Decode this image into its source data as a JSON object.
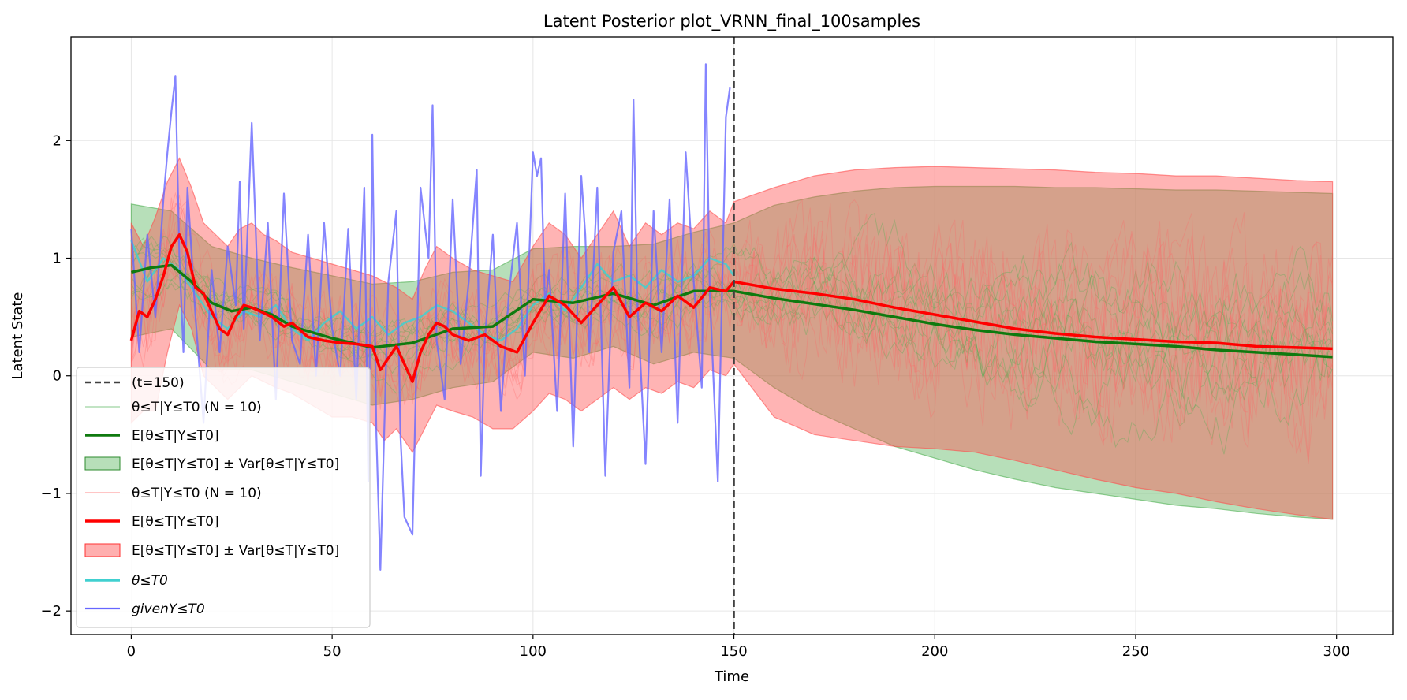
{
  "chart_data": {
    "type": "line",
    "title": "Latent Posterior plot_VRNN_final_100samples",
    "xlabel": "Time",
    "ylabel": "Latent State",
    "xlim": [
      -15,
      314
    ],
    "ylim": [
      -2.2,
      2.88
    ],
    "xticks": [
      0,
      50,
      100,
      150,
      200,
      250,
      300
    ],
    "yticks": [
      -2,
      -1,
      0,
      1,
      2
    ],
    "grid": true,
    "legend_position": "lower-left",
    "vline": {
      "x": 150,
      "label": "(t=150)",
      "color": "#404040",
      "style": "dashed"
    },
    "colors": {
      "green": "#0f7a0f",
      "green_band": "#4caf50",
      "red": "#ff0000",
      "red_band": "#ff4d4d",
      "cyan": "#40d0d0",
      "blue": "#6666ff"
    },
    "series": [
      {
        "name": "E[θ≤T|Y≤T0] (green)",
        "color": "#0f7a0f",
        "x": [
          0,
          5,
          10,
          15,
          20,
          25,
          30,
          35,
          40,
          50,
          60,
          70,
          80,
          90,
          100,
          110,
          120,
          130,
          140,
          150,
          160,
          170,
          180,
          190,
          200,
          210,
          220,
          230,
          240,
          250,
          260,
          270,
          280,
          290,
          299
        ],
        "values": [
          0.88,
          0.92,
          0.94,
          0.8,
          0.62,
          0.55,
          0.58,
          0.52,
          0.42,
          0.32,
          0.24,
          0.28,
          0.4,
          0.42,
          0.65,
          0.62,
          0.7,
          0.6,
          0.72,
          0.72,
          0.66,
          0.61,
          0.56,
          0.5,
          0.44,
          0.39,
          0.35,
          0.32,
          0.29,
          0.27,
          0.25,
          0.22,
          0.2,
          0.18,
          0.16
        ]
      },
      {
        "name": "E[θ≤T|Y≤T0] (red)",
        "color": "#ff0000",
        "x": [
          0,
          2,
          4,
          6,
          8,
          10,
          12,
          14,
          16,
          18,
          20,
          22,
          24,
          26,
          28,
          30,
          32,
          35,
          38,
          40,
          44,
          48,
          52,
          56,
          60,
          62,
          64,
          66,
          68,
          70,
          72,
          74,
          76,
          78,
          80,
          84,
          88,
          92,
          96,
          100,
          104,
          108,
          112,
          116,
          120,
          124,
          128,
          132,
          136,
          140,
          144,
          148,
          150,
          160,
          170,
          180,
          190,
          200,
          210,
          220,
          230,
          240,
          250,
          260,
          270,
          280,
          290,
          299
        ],
        "values": [
          0.3,
          0.55,
          0.5,
          0.65,
          0.85,
          1.1,
          1.2,
          1.05,
          0.75,
          0.7,
          0.55,
          0.4,
          0.35,
          0.5,
          0.6,
          0.58,
          0.55,
          0.5,
          0.42,
          0.45,
          0.33,
          0.3,
          0.28,
          0.27,
          0.25,
          0.05,
          0.15,
          0.25,
          0.1,
          -0.05,
          0.2,
          0.35,
          0.45,
          0.42,
          0.35,
          0.3,
          0.35,
          0.25,
          0.2,
          0.45,
          0.68,
          0.6,
          0.45,
          0.6,
          0.75,
          0.5,
          0.62,
          0.55,
          0.68,
          0.58,
          0.75,
          0.72,
          0.8,
          0.74,
          0.7,
          0.65,
          0.58,
          0.52,
          0.46,
          0.4,
          0.36,
          0.33,
          0.31,
          0.29,
          0.28,
          0.25,
          0.24,
          0.23
        ]
      },
      {
        "name": "θ≤T0",
        "color": "#40d0d0",
        "x": [
          0,
          4,
          8,
          12,
          16,
          20,
          24,
          28,
          32,
          36,
          40,
          44,
          48,
          52,
          56,
          60,
          64,
          68,
          72,
          76,
          80,
          84,
          88,
          92,
          96,
          100,
          104,
          108,
          112,
          116,
          120,
          124,
          128,
          132,
          136,
          140,
          144,
          148,
          150
        ],
        "values": [
          1.15,
          0.8,
          1.0,
          0.9,
          0.7,
          0.5,
          0.4,
          0.55,
          0.5,
          0.6,
          0.4,
          0.3,
          0.45,
          0.55,
          0.4,
          0.5,
          0.35,
          0.45,
          0.5,
          0.6,
          0.55,
          0.45,
          0.35,
          0.3,
          0.4,
          0.6,
          0.7,
          0.55,
          0.75,
          0.95,
          0.8,
          0.85,
          0.75,
          0.9,
          0.8,
          0.85,
          1.0,
          0.95,
          0.85
        ]
      },
      {
        "name": "given Y≤T0",
        "color": "#6666ff",
        "x": [
          0,
          2,
          4,
          6,
          8,
          9,
          10,
          11,
          12,
          13,
          14,
          16,
          18,
          20,
          22,
          24,
          26,
          27,
          28,
          30,
          32,
          33,
          34,
          36,
          38,
          40,
          42,
          44,
          46,
          48,
          50,
          52,
          54,
          56,
          58,
          59,
          60,
          61,
          62,
          64,
          66,
          67,
          68,
          70,
          72,
          74,
          75,
          76,
          78,
          80,
          82,
          84,
          86,
          87,
          88,
          90,
          92,
          94,
          96,
          98,
          100,
          101,
          102,
          103,
          104,
          106,
          108,
          110,
          112,
          113,
          114,
          116,
          118,
          120,
          122,
          124,
          125,
          126,
          128,
          130,
          132,
          134,
          136,
          138,
          140,
          142,
          143,
          144,
          146,
          148,
          149
        ],
        "values": [
          1.25,
          0.2,
          1.2,
          0.5,
          1.5,
          1.9,
          2.25,
          2.55,
          1.0,
          0.2,
          1.6,
          0.5,
          -0.4,
          0.9,
          0.2,
          1.1,
          0.6,
          1.65,
          0.4,
          2.15,
          0.3,
          0.8,
          1.3,
          -0.2,
          1.55,
          0.3,
          0.1,
          1.2,
          0.0,
          1.3,
          0.4,
          0.0,
          1.25,
          -0.2,
          1.6,
          -0.9,
          2.05,
          -0.5,
          -1.65,
          0.8,
          1.4,
          -0.5,
          -1.2,
          -1.35,
          1.6,
          1.0,
          2.3,
          0.3,
          -0.2,
          1.5,
          0.1,
          0.8,
          1.75,
          -0.85,
          0.3,
          1.2,
          -0.3,
          0.7,
          1.3,
          0.0,
          1.9,
          1.7,
          1.85,
          0.6,
          0.9,
          -0.3,
          1.55,
          -0.6,
          1.7,
          1.2,
          0.2,
          1.6,
          -0.85,
          1.05,
          1.4,
          -0.1,
          2.35,
          0.6,
          -0.75,
          1.4,
          0.2,
          1.5,
          -0.4,
          1.9,
          0.8,
          -0.1,
          2.65,
          0.7,
          -0.9,
          2.2,
          2.45
        ]
      }
    ],
    "bands": [
      {
        "name": "E[θ≤T|Y≤T0] ± Var[θ≤T|Y≤T0] (green)",
        "color": "#4caf50",
        "x": [
          0,
          10,
          20,
          30,
          40,
          50,
          60,
          70,
          80,
          90,
          100,
          110,
          120,
          130,
          140,
          150,
          160,
          170,
          180,
          190,
          200,
          210,
          220,
          230,
          240,
          250,
          260,
          270,
          280,
          290,
          299
        ],
        "upper": [
          1.46,
          1.4,
          1.1,
          1.0,
          0.92,
          0.85,
          0.78,
          0.8,
          0.88,
          0.9,
          1.08,
          1.1,
          1.1,
          1.12,
          1.22,
          1.3,
          1.45,
          1.52,
          1.57,
          1.6,
          1.61,
          1.61,
          1.61,
          1.6,
          1.6,
          1.59,
          1.58,
          1.58,
          1.57,
          1.56,
          1.55
        ],
        "lower": [
          0.33,
          0.4,
          0.05,
          0.05,
          -0.05,
          -0.15,
          -0.25,
          -0.2,
          -0.1,
          -0.05,
          0.2,
          0.15,
          0.25,
          0.1,
          0.2,
          0.15,
          -0.1,
          -0.3,
          -0.45,
          -0.6,
          -0.7,
          -0.8,
          -0.88,
          -0.95,
          -1.0,
          -1.05,
          -1.1,
          -1.13,
          -1.17,
          -1.2,
          -1.22
        ]
      },
      {
        "name": "E[θ≤T|Y≤T0] ± Var[θ≤T|Y≤T0] (red)",
        "color": "#ff4d4d",
        "x": [
          0,
          3,
          6,
          9,
          12,
          15,
          18,
          21,
          24,
          27,
          30,
          33,
          36,
          40,
          45,
          50,
          55,
          60,
          63,
          66,
          70,
          73,
          76,
          80,
          85,
          90,
          95,
          100,
          104,
          108,
          112,
          116,
          120,
          124,
          128,
          132,
          136,
          140,
          144,
          148,
          150,
          160,
          170,
          180,
          190,
          200,
          210,
          220,
          230,
          240,
          250,
          260,
          270,
          280,
          290,
          299
        ],
        "upper": [
          1.3,
          1.1,
          1.35,
          1.65,
          1.85,
          1.6,
          1.3,
          1.2,
          1.1,
          1.25,
          1.3,
          1.2,
          1.15,
          1.05,
          1.0,
          0.95,
          0.9,
          0.85,
          0.8,
          0.75,
          0.65,
          0.9,
          1.1,
          1.0,
          0.9,
          0.85,
          0.8,
          1.1,
          1.3,
          1.2,
          1.0,
          1.2,
          1.4,
          1.1,
          1.3,
          1.2,
          1.3,
          1.25,
          1.4,
          1.3,
          1.48,
          1.6,
          1.7,
          1.75,
          1.77,
          1.78,
          1.77,
          1.76,
          1.75,
          1.73,
          1.72,
          1.7,
          1.7,
          1.68,
          1.66,
          1.65
        ],
        "lower": [
          -0.4,
          -0.3,
          -0.3,
          0.2,
          0.6,
          0.4,
          0.0,
          -0.1,
          -0.2,
          -0.1,
          0.0,
          -0.05,
          -0.1,
          -0.15,
          -0.25,
          -0.35,
          -0.35,
          -0.4,
          -0.55,
          -0.45,
          -0.65,
          -0.45,
          -0.25,
          -0.3,
          -0.35,
          -0.45,
          -0.45,
          -0.3,
          -0.15,
          -0.2,
          -0.3,
          -0.2,
          -0.1,
          -0.2,
          -0.1,
          -0.15,
          -0.05,
          -0.1,
          0.05,
          0.0,
          0.1,
          -0.35,
          -0.5,
          -0.55,
          -0.6,
          -0.62,
          -0.65,
          -0.72,
          -0.8,
          -0.88,
          -0.95,
          -1.0,
          -1.07,
          -1.13,
          -1.18,
          -1.22
        ]
      }
    ],
    "legend": [
      "(t=150)",
      "θ≤T|Y≤T0 (N = 10)",
      "E[θ≤T|Y≤T0]",
      "E[θ≤T|Y≤T0] ± Var[θ≤T|Y≤T0]",
      "θ≤T|Y≤T0 (N = 10)",
      "E[θ≤T|Y≤T0]",
      "E[θ≤T|Y≤T0] ± Var[θ≤T|Y≤T0]",
      "θ≤T0",
      "givenY≤T0"
    ]
  }
}
